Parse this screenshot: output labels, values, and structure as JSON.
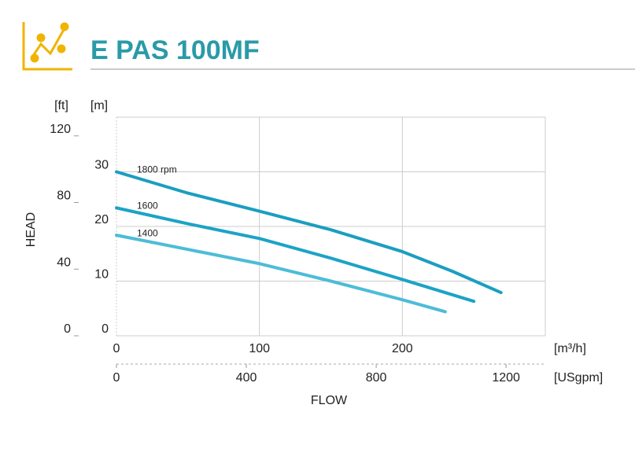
{
  "chart_data": {
    "type": "line",
    "title": "E PAS 100MF",
    "y_label": "HEAD",
    "x_label": "FLOW",
    "y_unit": "[m]",
    "y2_unit": "[ft]",
    "x_unit": "[m³/h]",
    "x2_unit": "[USgpm]",
    "xlim": [
      0,
      300
    ],
    "xticks": [
      0,
      100,
      200
    ],
    "x2lim": [
      0,
      1320.86
    ],
    "x2ticks": [
      0,
      400,
      800,
      1200
    ],
    "ylim": [
      0,
      40
    ],
    "yticks": [
      0,
      10,
      20,
      30
    ],
    "y2lim": [
      0,
      131.23
    ],
    "y2ticks": [
      0,
      40,
      80,
      120
    ],
    "grid": true,
    "series": [
      {
        "name": "1800 rpm",
        "color": "#1b9ec0",
        "x": [
          0,
          50,
          100,
          150,
          200,
          235,
          269
        ],
        "values": [
          30,
          26.1,
          22.8,
          19.4,
          15.4,
          11.8,
          7.9
        ]
      },
      {
        "name": "1600",
        "color": "#1ca3c6",
        "x": [
          0,
          50,
          100,
          150,
          200,
          250
        ],
        "values": [
          23.4,
          20.5,
          17.8,
          14.2,
          10.3,
          6.3
        ]
      },
      {
        "name": "1400",
        "color": "#4dbcd8",
        "x": [
          0,
          50,
          100,
          150,
          200,
          230
        ],
        "values": [
          18.4,
          15.8,
          13.2,
          10.0,
          6.6,
          4.4
        ]
      }
    ]
  }
}
